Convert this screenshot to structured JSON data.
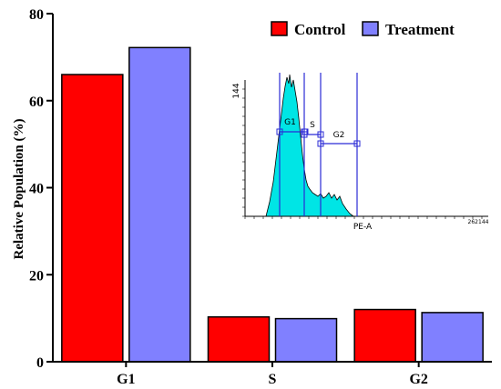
{
  "chart_data": {
    "type": "bar",
    "categories": [
      "G1",
      "S",
      "G2"
    ],
    "series": [
      {
        "name": "Control",
        "values": [
          66,
          10.3,
          12
        ],
        "color": "#ff0000"
      },
      {
        "name": "Treatment",
        "values": [
          72.2,
          9.9,
          11.3
        ],
        "color": "#8080ff"
      }
    ],
    "ylabel": "Relative Population (%)",
    "ylim": [
      0,
      80
    ],
    "yticks": [
      0,
      20,
      40,
      60,
      80
    ],
    "legend_position": "top-right",
    "grid": false
  },
  "inset": {
    "y_max_label": "144",
    "x_axis_label": "PE-A",
    "x_max_label": "262144",
    "gate_labels": [
      "G1",
      "S",
      "G2"
    ],
    "histogram_color": "#00e5e5",
    "gate_color": "#2b2bd6"
  }
}
